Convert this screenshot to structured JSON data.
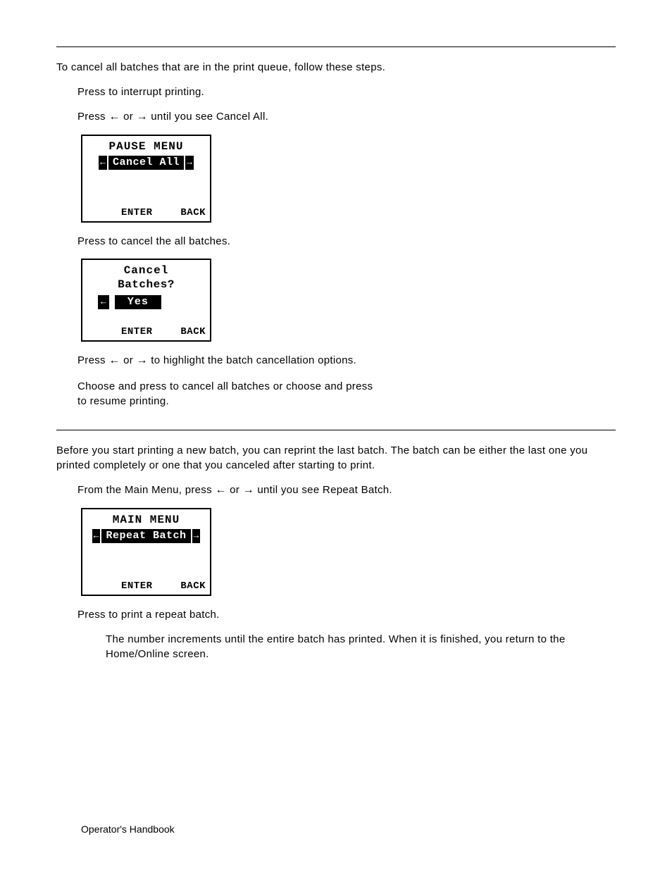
{
  "intro": "To cancel all batches that are in the print queue, follow these steps.",
  "step1": "Press            to interrupt printing.",
  "step2_a": "Press ",
  "step2_b": " or ",
  "step2_c": " until you see Cancel All.",
  "arrow_left": "←",
  "arrow_right": "→",
  "lcd1": {
    "title": "PAUSE MENU",
    "highlight": "Cancel All",
    "enter": "ENTER",
    "back": "BACK"
  },
  "step3": "Press            to cancel the all batches.",
  "lcd2": {
    "line1": "Cancel",
    "line2": "Batches?",
    "yes": "Yes",
    "enter": "ENTER",
    "back": "BACK"
  },
  "step4_a": "Press ",
  "step4_b": " or ",
  "step4_c": " to highlight the batch cancellation options.",
  "step5_a": "Choose        and press            to cancel all batches or choose        and press",
  "step5_b": "to resume printing.",
  "repeat_intro": "Before you start printing a new batch, you can reprint the last batch.  The batch can be either the last one you printed completely or one that you canceled after starting to print.",
  "repeat_step1_a": "From the Main Menu, press ",
  "repeat_step1_b": " or ",
  "repeat_step1_c": " until you see Repeat Batch.",
  "lcd3": {
    "title": "MAIN MENU",
    "highlight": "Repeat Batch",
    "enter": "ENTER",
    "back": "BACK"
  },
  "repeat_step2": "Press            to print a repeat batch.",
  "repeat_note": "The number increments until the entire batch has printed.  When it is finished, you return to the Home/Online screen.",
  "footer": "Operator's Handbook"
}
